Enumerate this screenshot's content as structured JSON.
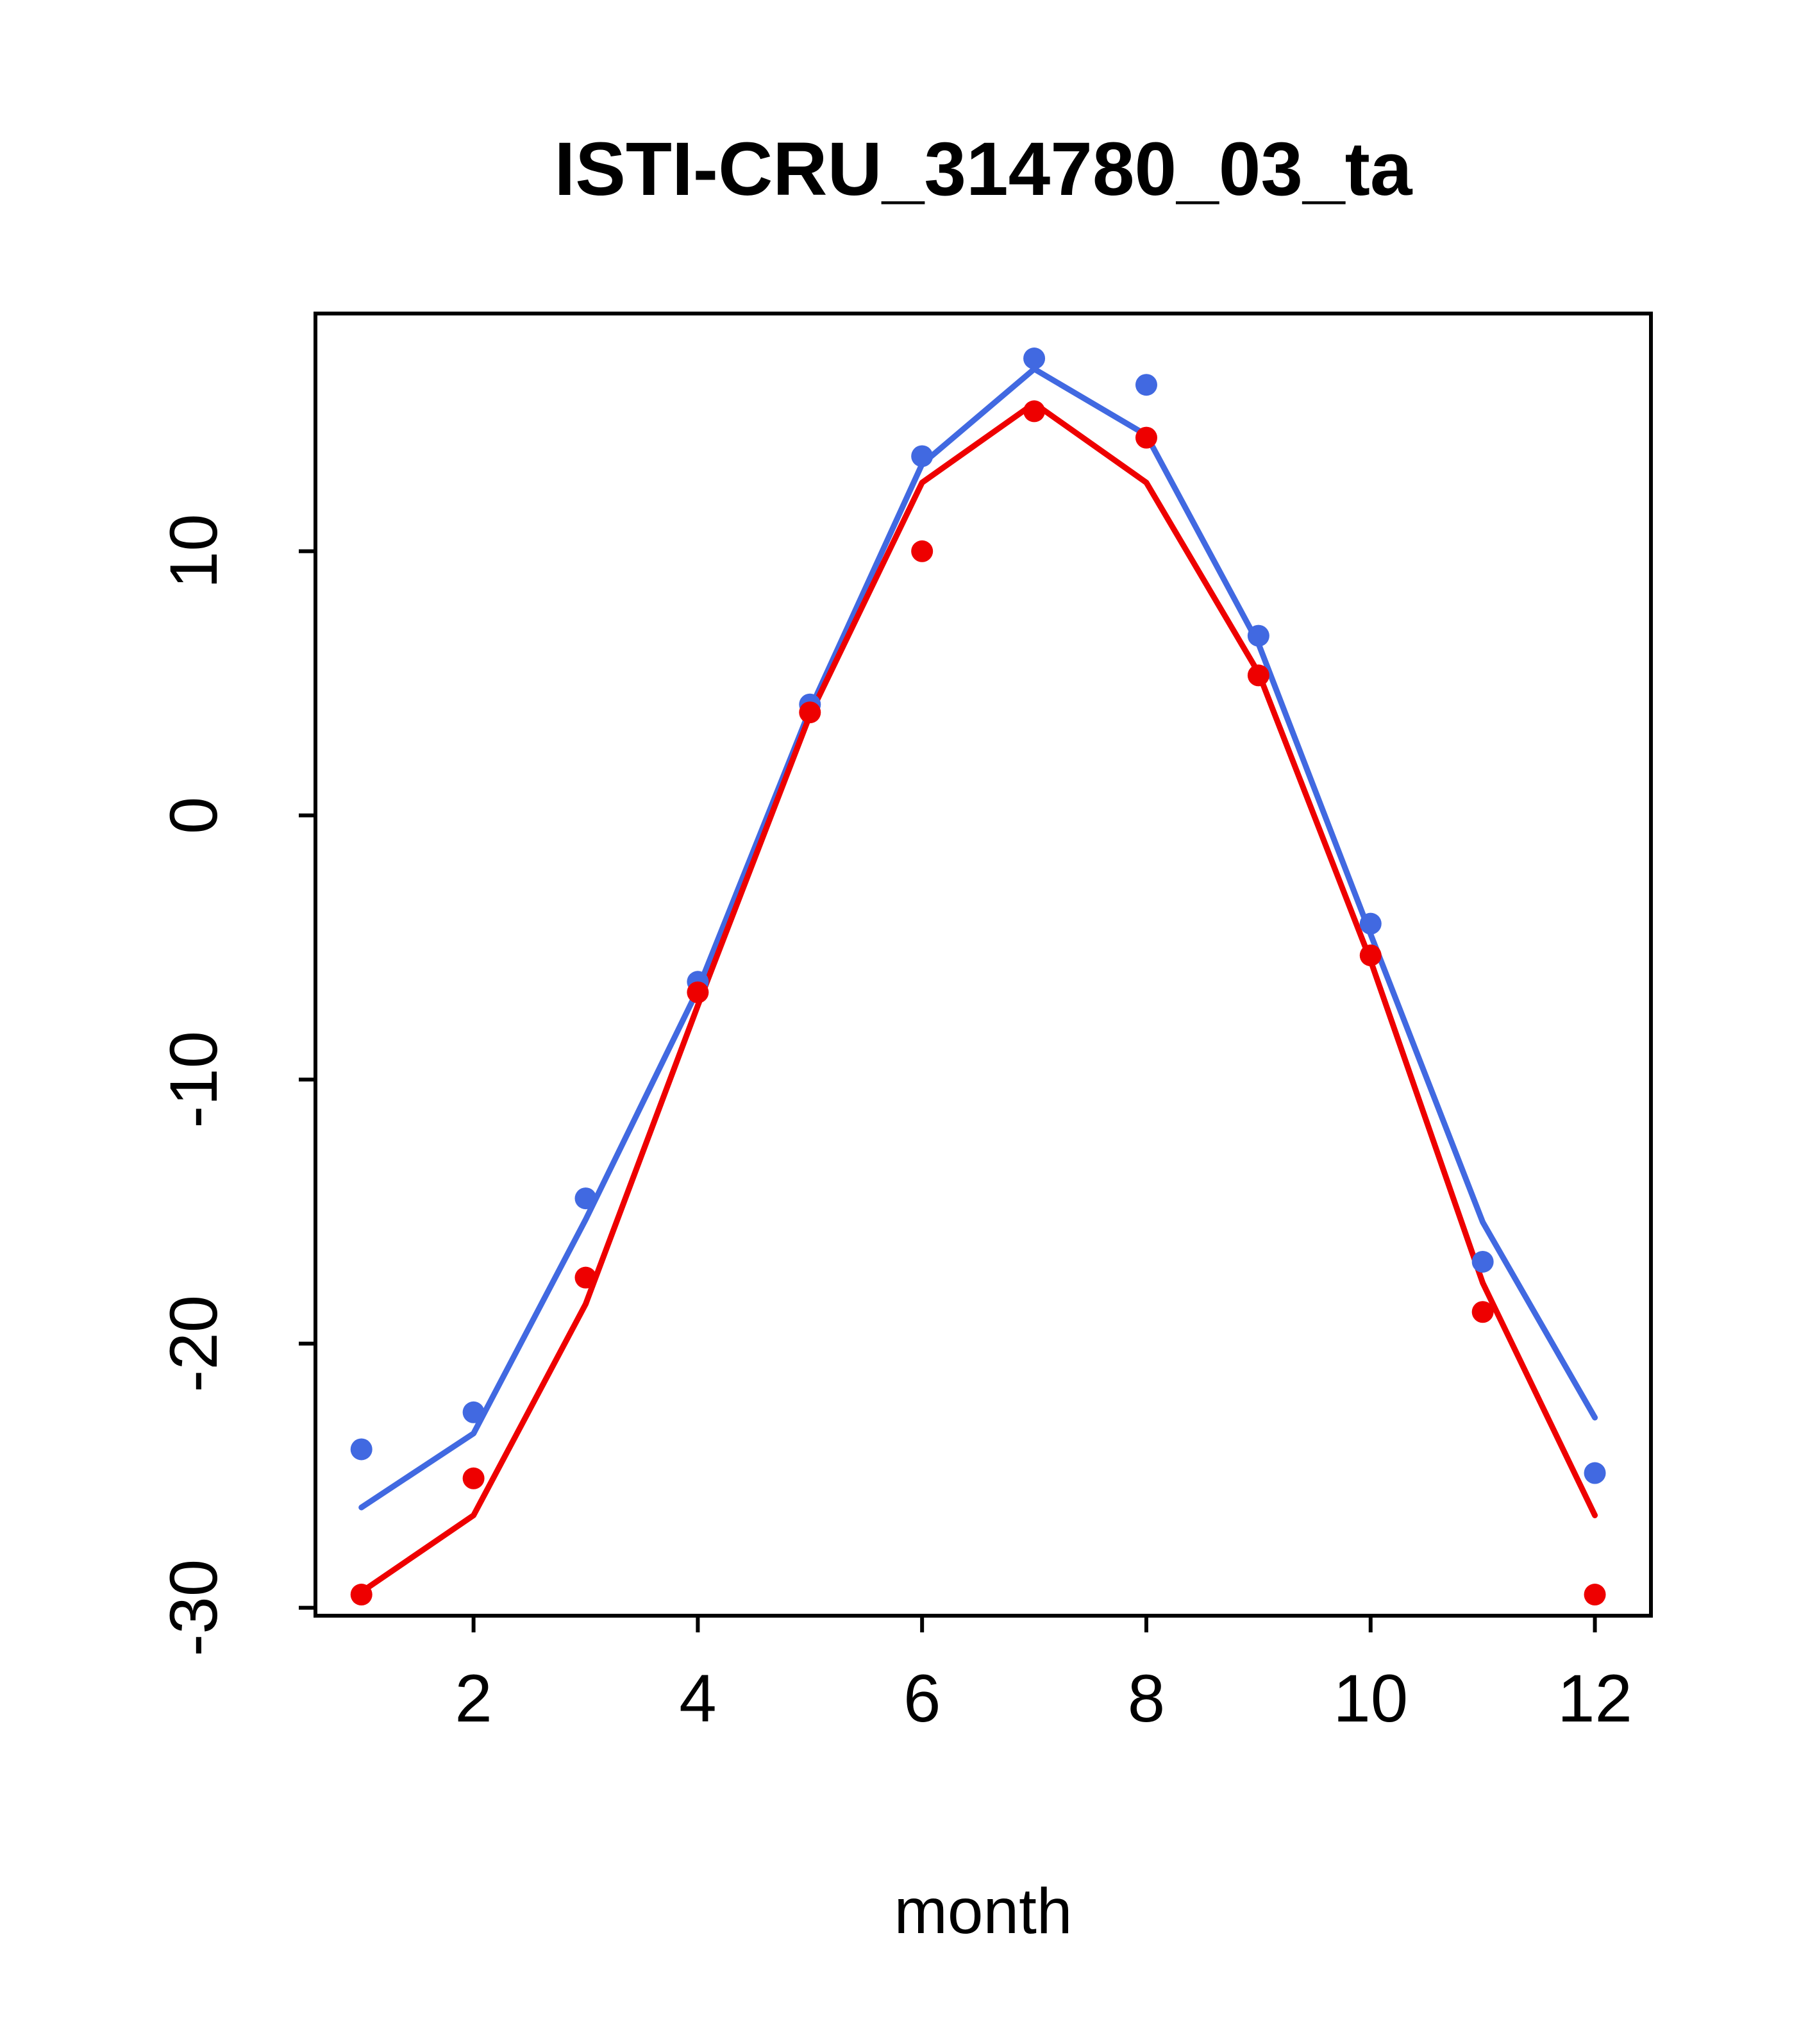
{
  "chart_data": {
    "type": "line",
    "title": "ISTI-CRU_314780_03_ta",
    "xlabel": "month",
    "ylabel": "",
    "x": [
      1,
      2,
      3,
      4,
      5,
      6,
      7,
      8,
      9,
      10,
      11,
      12
    ],
    "xlim": [
      0.59,
      12.5
    ],
    "ylim": [
      -30.3,
      19.0
    ],
    "x_ticks": [
      2,
      4,
      6,
      8,
      10,
      12
    ],
    "y_ticks": [
      -30,
      -20,
      -10,
      0,
      10
    ],
    "grid": false,
    "legend": "none",
    "colors": {
      "blue": "#4169E1",
      "red": "#EE0000"
    },
    "series": [
      {
        "name": "blue",
        "color": "#4169E1",
        "line": [
          -26.2,
          -23.4,
          -15.3,
          -6.6,
          4.0,
          13.3,
          16.9,
          14.4,
          6.5,
          -4.5,
          -15.4,
          -22.8
        ],
        "points": [
          -24.0,
          -22.6,
          -14.5,
          -6.3,
          4.2,
          13.6,
          17.3,
          16.3,
          6.8,
          -4.1,
          -16.9,
          -24.9
        ]
      },
      {
        "name": "red",
        "color": "#EE0000",
        "line": [
          -29.4,
          -26.5,
          -18.5,
          -7.2,
          3.8,
          12.6,
          15.6,
          12.6,
          5.4,
          -5.5,
          -17.7,
          -26.5
        ],
        "points": [
          -29.5,
          -25.1,
          -17.5,
          -6.7,
          3.9,
          10.0,
          15.3,
          14.3,
          5.3,
          -5.3,
          -18.8,
          -29.5
        ]
      }
    ]
  }
}
